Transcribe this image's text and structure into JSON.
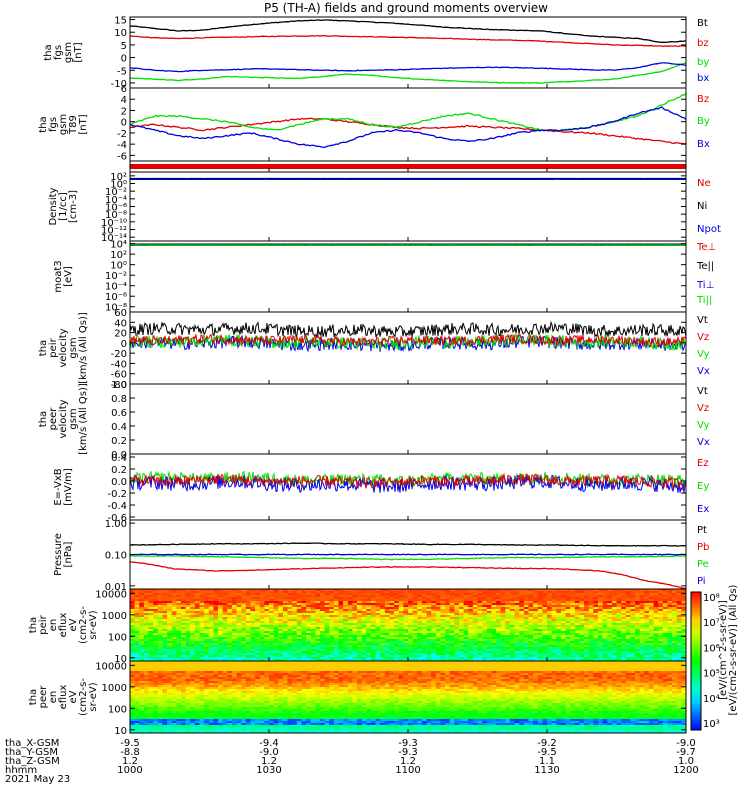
{
  "title": "P5 (TH-A) fields and ground moments overview",
  "colors": {
    "black": "#000000",
    "red": "#e00000",
    "green": "#00e000",
    "blue": "#0000e0"
  },
  "chart_data": [
    {
      "type": "line",
      "ylabel": [
        "tha",
        "fgs",
        "gsm",
        "[nT]"
      ],
      "ylim": [
        -12,
        16
      ],
      "yticks": [
        "15",
        "10",
        "5",
        "0",
        "-5",
        "-10"
      ],
      "ytick_values": [
        15,
        10,
        5,
        0,
        -5,
        -10
      ],
      "legend": [
        {
          "name": "Bt",
          "color": "black"
        },
        {
          "name": "bz",
          "color": "red"
        },
        {
          "name": "by",
          "color": "green"
        },
        {
          "name": "bx",
          "color": "blue"
        }
      ],
      "series": [
        {
          "name": "Bt",
          "color": "black",
          "values": [
            12.5,
            11.5,
            10.5,
            10.8,
            12.0,
            13.0,
            13.8,
            14.5,
            14.8,
            14.5,
            14.0,
            13.5,
            12.8,
            12.0,
            11.5,
            11.0,
            10.8,
            10.5,
            9.5,
            8.5,
            8.0,
            7.5,
            6.0,
            6.5
          ]
        },
        {
          "name": "bz",
          "color": "red",
          "values": [
            8.5,
            7.8,
            7.5,
            7.8,
            8.0,
            8.2,
            8.4,
            8.5,
            8.6,
            8.4,
            8.2,
            8.0,
            7.8,
            7.5,
            7.3,
            7.0,
            6.8,
            6.5,
            6.0,
            5.5,
            5.0,
            4.8,
            4.5,
            4.5
          ]
        },
        {
          "name": "by",
          "color": "green",
          "values": [
            -8.0,
            -8.5,
            -9.0,
            -8.5,
            -7.5,
            -7.8,
            -8.0,
            -8.2,
            -7.5,
            -6.5,
            -7.0,
            -8.0,
            -8.5,
            -9.0,
            -9.5,
            -9.8,
            -10.0,
            -10.0,
            -9.5,
            -9.0,
            -8.5,
            -7.0,
            -5.5,
            -2.0
          ]
        },
        {
          "name": "bx",
          "color": "blue",
          "values": [
            -4.0,
            -5.0,
            -5.5,
            -5.0,
            -4.8,
            -4.5,
            -4.5,
            -4.8,
            -5.0,
            -5.2,
            -5.0,
            -4.8,
            -4.5,
            -4.2,
            -4.0,
            -3.8,
            -4.0,
            -4.2,
            -4.5,
            -4.8,
            -5.0,
            -4.0,
            -2.0,
            -3.0
          ]
        }
      ]
    },
    {
      "type": "line",
      "ylabel": [
        "tha",
        "fgs",
        "gsm",
        "T89",
        "[nT]"
      ],
      "ylim": [
        -7,
        6
      ],
      "yticks": [
        "6",
        "4",
        "2",
        "0",
        "-2",
        "-4",
        "-6"
      ],
      "ytick_values": [
        6,
        4,
        2,
        0,
        -2,
        -4,
        -6
      ],
      "legend": [
        {
          "name": "Bz",
          "color": "red"
        },
        {
          "name": "By",
          "color": "green"
        },
        {
          "name": "Bx",
          "color": "blue"
        }
      ],
      "series": [
        {
          "name": "Bz",
          "color": "red",
          "values": [
            -1.0,
            -0.5,
            -1.0,
            -1.5,
            -1.0,
            -0.5,
            0.0,
            0.5,
            0.5,
            0.0,
            -0.5,
            -1.0,
            -1.2,
            -1.0,
            -0.8,
            -1.0,
            -1.2,
            -1.5,
            -1.8,
            -2.0,
            -2.5,
            -3.0,
            -3.5,
            -4.0
          ]
        },
        {
          "name": "By",
          "color": "green",
          "values": [
            -0.5,
            1.0,
            1.0,
            0.5,
            0.0,
            -1.0,
            -1.5,
            -0.5,
            0.5,
            0.5,
            -0.5,
            -1.0,
            0.0,
            1.0,
            1.5,
            0.5,
            -0.5,
            -1.5,
            -1.5,
            -1.0,
            0.0,
            1.0,
            3.0,
            5.0
          ]
        },
        {
          "name": "Bx",
          "color": "blue",
          "values": [
            -0.5,
            -1.5,
            -2.5,
            -3.0,
            -2.5,
            -2.0,
            -3.0,
            -4.0,
            -4.5,
            -3.5,
            -2.0,
            -1.5,
            -2.0,
            -3.0,
            -3.5,
            -3.0,
            -2.0,
            -1.5,
            -1.5,
            -1.0,
            0.0,
            1.5,
            2.5,
            0.5
          ]
        }
      ]
    },
    {
      "type": "bar",
      "ylabel": [],
      "color": "red"
    },
    {
      "type": "line",
      "ylabel": [
        "Density",
        "[1/cc]",
        "[cm-3]"
      ],
      "yscale": "log",
      "yticks": [
        "10²",
        "10⁰",
        "10⁻²",
        "10⁻⁴",
        "10⁻⁶",
        "10⁻⁸",
        "10⁻¹⁰",
        "10⁻¹²",
        "10⁻¹⁴"
      ],
      "ytick_values": [
        2,
        0,
        -2,
        -4,
        -6,
        -8,
        -10,
        -12,
        -14
      ],
      "ylim": [
        -15,
        3
      ],
      "legend": [
        {
          "name": "Ne",
          "color": "red"
        },
        {
          "name": "Ni",
          "color": "black"
        },
        {
          "name": "Npot",
          "color": "blue"
        }
      ],
      "series": [
        {
          "name": "Ne",
          "color": "red",
          "values": [
            1.2,
            1.2,
            1.2,
            1.2,
            1.2,
            1.2
          ]
        },
        {
          "name": "Ni",
          "color": "black",
          "values": [
            1.3,
            1.3,
            1.3,
            1.3,
            1.3,
            1.3
          ]
        },
        {
          "name": "Npot",
          "color": "blue",
          "values": [
            1.1,
            1.1,
            1.1,
            1.1,
            1.1,
            1.1
          ]
        }
      ]
    },
    {
      "type": "line",
      "ylabel": [
        "moat3",
        "[eV]"
      ],
      "yscale": "log",
      "yticks": [
        "10⁴",
        "10²",
        "10⁰",
        "10⁻²",
        "10⁻⁴",
        "10⁻⁶",
        "10⁻⁸"
      ],
      "ytick_values": [
        4,
        2,
        0,
        -2,
        -4,
        -6,
        -8
      ],
      "ylim": [
        -9,
        4.5
      ],
      "legend": [
        {
          "name": "Te⊥",
          "color": "red"
        },
        {
          "name": "Te||",
          "color": "black"
        },
        {
          "name": "Ti⊥",
          "color": "blue"
        },
        {
          "name": "Ti||",
          "color": "green"
        }
      ],
      "series": [
        {
          "name": "Te⊥",
          "color": "red",
          "values": [
            3.8,
            3.8,
            3.8,
            3.8,
            3.8,
            3.8
          ]
        },
        {
          "name": "Te||",
          "color": "black",
          "values": [
            3.9,
            3.9,
            3.9,
            3.9,
            3.9,
            3.9
          ]
        },
        {
          "name": "Ti⊥",
          "color": "blue",
          "values": [
            3.7,
            3.7,
            3.7,
            3.7,
            3.7,
            3.7
          ]
        },
        {
          "name": "Ti||",
          "color": "green",
          "values": [
            3.75,
            3.75,
            3.75,
            3.75,
            3.75,
            3.75
          ]
        }
      ]
    },
    {
      "type": "line",
      "ylabel": [
        "tha",
        "peir",
        "velocity",
        "gsm",
        "[km/s (All Qs)]"
      ],
      "ylim": [
        -80,
        60
      ],
      "yticks": [
        "60",
        "40",
        "20",
        "0",
        "-20",
        "-40",
        "-60",
        "-80"
      ],
      "ytick_values": [
        60,
        40,
        20,
        0,
        -20,
        -40,
        -60,
        -80
      ],
      "legend": [
        {
          "name": "Vt",
          "color": "black"
        },
        {
          "name": "Vz",
          "color": "red"
        },
        {
          "name": "Vy",
          "color": "green"
        },
        {
          "name": "Vx",
          "color": "blue"
        }
      ],
      "series": [
        {
          "name": "Vt",
          "color": "black",
          "mean": 25,
          "noise": 12
        },
        {
          "name": "Vx",
          "color": "blue",
          "mean": -2,
          "noise": 12
        },
        {
          "name": "Vy",
          "color": "green",
          "mean": 2,
          "noise": 12
        },
        {
          "name": "Vz",
          "color": "red",
          "mean": 5,
          "noise": 9
        }
      ]
    },
    {
      "type": "line",
      "ylabel": [
        "tha",
        "peer",
        "velocity",
        "gsm",
        "[km/s (All Qs)]"
      ],
      "ylim": [
        0,
        1
      ],
      "yticks": [
        "1.0",
        "0.8",
        "0.6",
        "0.4",
        "0.2",
        "0.0"
      ],
      "ytick_values": [
        1.0,
        0.8,
        0.6,
        0.4,
        0.2,
        0.0
      ],
      "legend": [
        {
          "name": "Vt",
          "color": "black"
        },
        {
          "name": "Vz",
          "color": "red"
        },
        {
          "name": "Vy",
          "color": "green"
        },
        {
          "name": "Vx",
          "color": "blue"
        }
      ],
      "series": []
    },
    {
      "type": "line",
      "ylabel": [
        "E=-VxB",
        "[mV/m]"
      ],
      "ylim": [
        -0.65,
        0.45
      ],
      "yticks": [
        "0.4",
        "0.2",
        "0.0",
        "-0.2",
        "-0.4",
        "-0.6"
      ],
      "ytick_values": [
        0.4,
        0.2,
        0.0,
        -0.2,
        -0.4,
        -0.6
      ],
      "legend": [
        {
          "name": "Ez",
          "color": "red"
        },
        {
          "name": "Ey",
          "color": "green"
        },
        {
          "name": "Ex",
          "color": "blue"
        }
      ],
      "series": [
        {
          "name": "Ey",
          "color": "green",
          "mean": 0.03,
          "noise": 0.1
        },
        {
          "name": "Ex",
          "color": "blue",
          "mean": -0.05,
          "noise": 0.12
        },
        {
          "name": "Ez",
          "color": "red",
          "mean": 0.0,
          "noise": 0.09
        }
      ]
    },
    {
      "type": "line",
      "ylabel": [
        "Pressure",
        "[nPa]"
      ],
      "yscale": "log",
      "ylim": [
        -2.1,
        0.1
      ],
      "yticks": [
        "1.00",
        "0.10",
        "0.01"
      ],
      "ytick_values": [
        0,
        -1,
        -2
      ],
      "legend": [
        {
          "name": "Pt",
          "color": "black"
        },
        {
          "name": "Pb",
          "color": "red"
        },
        {
          "name": "Pe",
          "color": "green"
        },
        {
          "name": "Pi",
          "color": "blue"
        }
      ],
      "series": [
        {
          "name": "Pt",
          "color": "black",
          "values": [
            0.2,
            0.21,
            0.22,
            0.22,
            0.23,
            0.22,
            0.22,
            0.21,
            0.21,
            0.2,
            0.2,
            0.19,
            0.19,
            0.19
          ]
        },
        {
          "name": "Pe",
          "color": "green",
          "values": [
            0.09,
            0.09,
            0.085,
            0.08,
            0.075,
            0.075,
            0.07,
            0.07,
            0.075,
            0.08,
            0.08,
            0.085,
            0.085,
            0.09
          ]
        },
        {
          "name": "Pi",
          "color": "blue",
          "values": [
            0.1,
            0.1,
            0.1,
            0.1,
            0.1,
            0.1,
            0.1,
            0.1,
            0.1,
            0.1,
            0.1,
            0.1,
            0.1,
            0.1
          ]
        },
        {
          "name": "Pb",
          "color": "red",
          "values": [
            0.06,
            0.035,
            0.03,
            0.032,
            0.035,
            0.038,
            0.04,
            0.04,
            0.038,
            0.036,
            0.035,
            0.03,
            0.015,
            0.008
          ]
        }
      ]
    },
    {
      "type": "heatmap",
      "ylabel": [
        "tha",
        "peir",
        "en",
        "eflux",
        "eV",
        "(cm2-s-",
        "sr-eV)"
      ],
      "yscale": "log",
      "ylim": [
        0.85,
        4.2
      ],
      "yticks": [
        "10000",
        "1000",
        "100",
        "10"
      ],
      "ytick_values": [
        4,
        3,
        2,
        1
      ],
      "profile": "ion"
    },
    {
      "type": "heatmap",
      "ylabel": [
        "tha",
        "peer",
        "en",
        "eflux",
        "eV",
        "(cm2-s-",
        "sr-eV)"
      ],
      "yscale": "log",
      "ylim": [
        0.85,
        4.2
      ],
      "yticks": [
        "10000",
        "1000",
        "100",
        "10"
      ],
      "ytick_values": [
        4,
        3,
        2,
        1
      ],
      "profile": "electron"
    }
  ],
  "colorbar": {
    "ticks": [
      "10⁸",
      "10⁷",
      "10⁶",
      "10⁵",
      "10⁴",
      "10³"
    ],
    "label": "[eV/(cm2-s-sr-eV)] (All Qs)",
    "label2": "[eV/(cm^2-s-sr-eV)]"
  },
  "time_axis": {
    "rows": [
      {
        "label": "tha_X-GSM",
        "values": [
          "-9.5",
          "-9.4",
          "-9.3",
          "-9.2",
          "-9.0"
        ]
      },
      {
        "label": "tha_Y-GSM",
        "values": [
          "-8.8",
          "-9.0",
          "-9.3",
          "-9.5",
          "-9.7"
        ]
      },
      {
        "label": "tha_Z-GSM",
        "values": [
          "1.2",
          "1.2",
          "1.2",
          "1.1",
          "1.0"
        ]
      },
      {
        "label": "hhmm",
        "values": [
          "1000",
          "1030",
          "1100",
          "1130",
          "1200"
        ]
      }
    ],
    "date": "2021 May 23"
  }
}
